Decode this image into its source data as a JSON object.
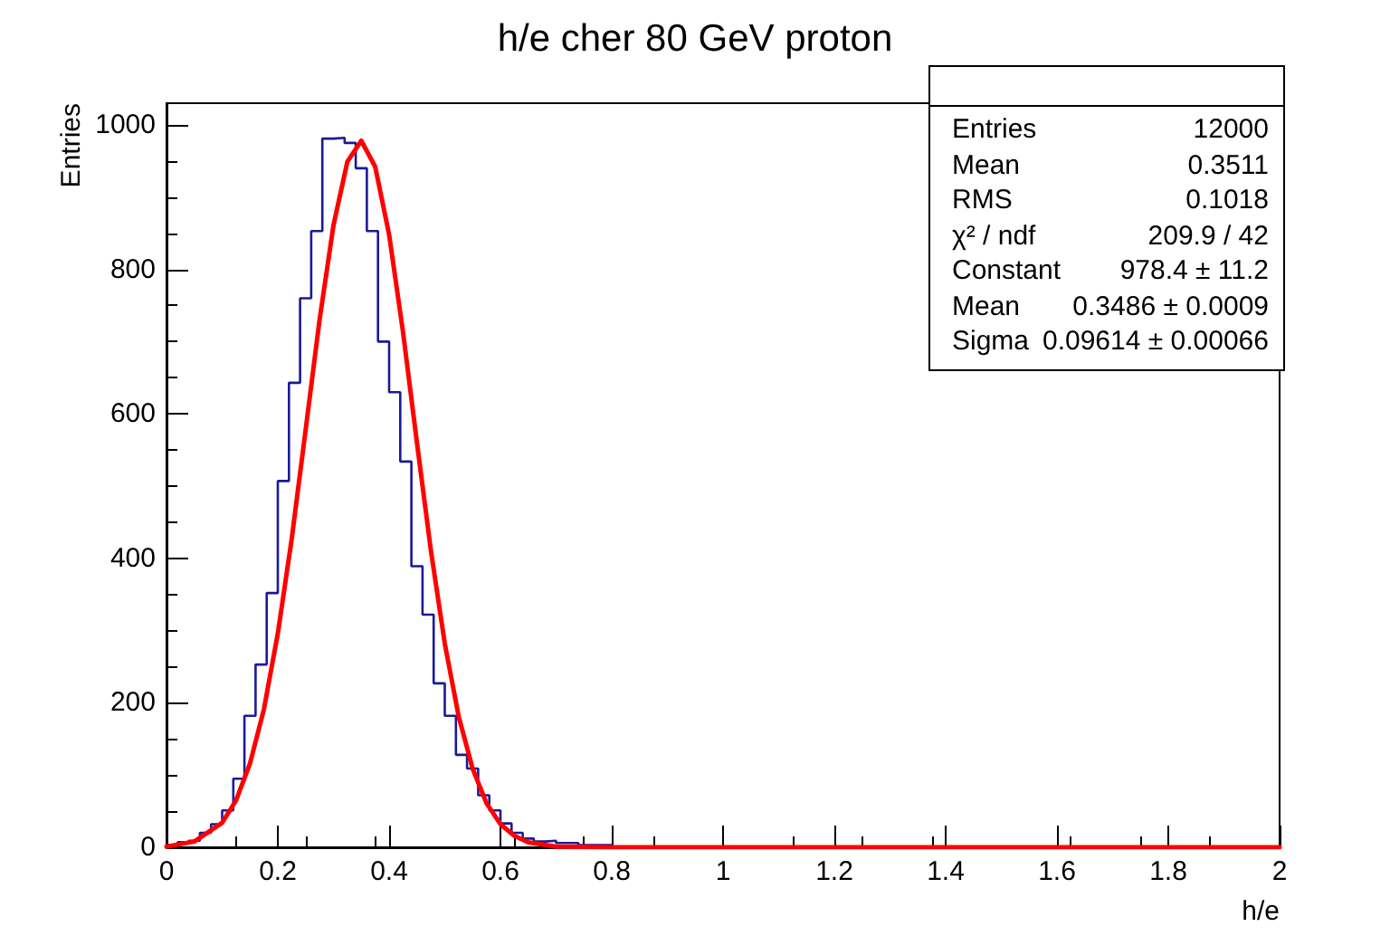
{
  "chart_data": {
    "type": "histogram",
    "title": "h/e cher 80 GeV proton",
    "xlabel": "h/e",
    "ylabel": "Entries",
    "bins": [
      0,
      0.02,
      0.04,
      0.06,
      0.08,
      0.1,
      0.12,
      0.14,
      0.16,
      0.18,
      0.2,
      0.22,
      0.24,
      0.26,
      0.28,
      0.3,
      0.32,
      0.34,
      0.36,
      0.38,
      0.4,
      0.42,
      0.44,
      0.46,
      0.48,
      0.5,
      0.52,
      0.54,
      0.56,
      0.58,
      0.6,
      0.62,
      0.64,
      0.66,
      0.68,
      0.7,
      0.72,
      0.74,
      0.76,
      0.78,
      0.8,
      0.82,
      0.84,
      0.86,
      0.88,
      0.9,
      0.92,
      0.94,
      0.96,
      0.98,
      1,
      1.02,
      1.04,
      1.06,
      1.08,
      1.1,
      1.12,
      1.14,
      1.16,
      1.18,
      1.2,
      1.22,
      1.24,
      1.26,
      1.28,
      1.3,
      1.32,
      1.34,
      1.36,
      1.38,
      1.4,
      1.42,
      1.44,
      1.46,
      1.48,
      1.5,
      1.52,
      1.54,
      1.56,
      1.58,
      1.6,
      1.62,
      1.64,
      1.66,
      1.68,
      1.7,
      1.72,
      1.74,
      1.76,
      1.78,
      1.8,
      1.82,
      1.84,
      1.86,
      1.88,
      1.9,
      1.92,
      1.94,
      1.96,
      1.98,
      2
    ],
    "series": [
      {
        "color": "#1a1a99",
        "values": [
          3,
          7,
          9,
          20,
          32,
          51,
          95,
          182,
          253,
          352,
          507,
          643,
          760,
          853,
          981,
          982,
          975,
          940,
          853,
          700,
          630,
          534,
          389,
          322,
          227,
          182,
          128,
          109,
          72,
          51,
          33,
          20,
          12,
          8,
          9,
          6,
          6,
          3,
          3,
          3,
          1,
          0,
          0,
          0,
          0,
          0,
          0,
          0,
          0,
          0,
          0,
          0,
          0,
          0,
          0,
          0,
          0,
          0,
          0,
          0,
          0,
          0,
          0,
          0,
          0,
          0,
          0,
          0,
          0,
          0,
          0,
          0,
          0,
          0,
          0,
          0,
          0,
          0,
          0,
          0,
          0,
          0,
          0,
          0,
          0,
          0,
          0,
          0,
          0,
          0,
          0,
          0,
          0,
          0,
          0,
          0,
          0,
          0,
          0,
          0
        ]
      },
      {
        "type": "line",
        "color": "#ff0000",
        "x": [
          0,
          0.05,
          0.1,
          0.125,
          0.15,
          0.175,
          0.2,
          0.225,
          0.25,
          0.275,
          0.3,
          0.325,
          0.35,
          0.375,
          0.4,
          0.425,
          0.45,
          0.475,
          0.5,
          0.525,
          0.55,
          0.575,
          0.6,
          0.625,
          0.65,
          0.7,
          0.8,
          2
        ],
        "values": [
          1,
          8,
          34,
          65,
          116,
          191,
          296,
          427,
          578,
          730,
          861,
          949,
          978,
          942,
          848,
          713,
          560,
          411,
          282,
          181,
          109,
          61,
          32,
          16,
          7,
          1,
          0,
          0
        ]
      }
    ],
    "xlim": [
      0,
      2
    ],
    "xticks": [
      0,
      0.2,
      0.4,
      0.6,
      0.8,
      1,
      1.2,
      1.4,
      1.6,
      1.8,
      2
    ],
    "ylim": [
      0,
      1030
    ],
    "yticks": [
      0,
      200,
      400,
      600,
      800,
      1000
    ],
    "marker": "none",
    "line_style": "solid",
    "annotations": [
      "Entries",
      "12000",
      "Mean",
      "0.3511",
      "RMS",
      "0.1018",
      "χ² / ndf",
      "209.9 / 42",
      "Constant",
      "978.4 ± 11.2",
      "Mean",
      "0.3486 ± 0.0009",
      "Sigma",
      "0.09614 ± 0.00066"
    ]
  }
}
